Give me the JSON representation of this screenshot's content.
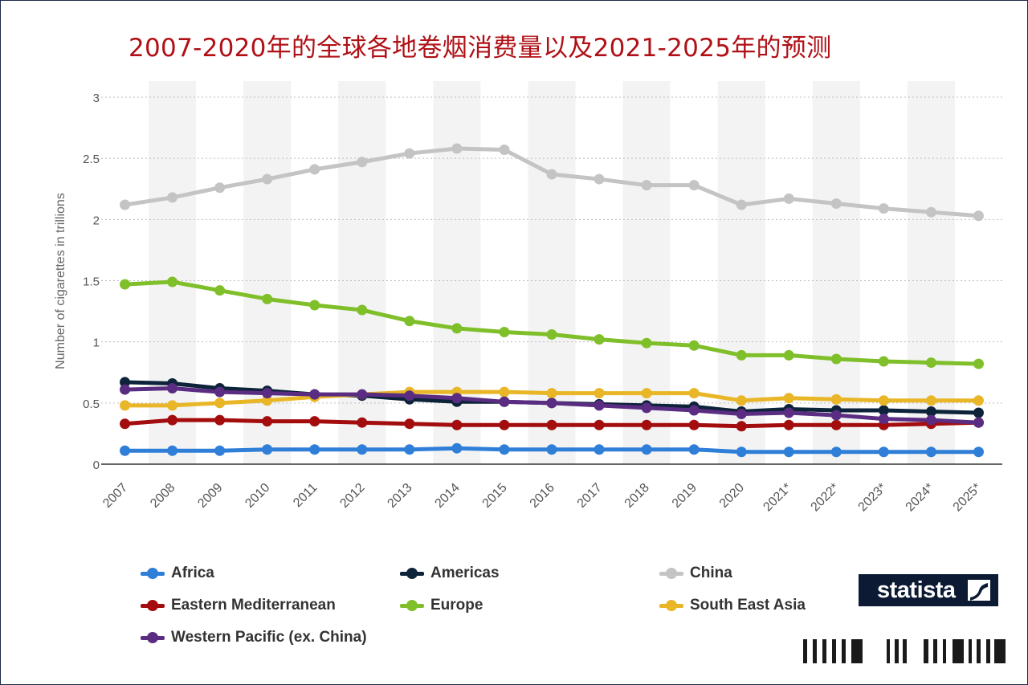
{
  "title": "2007-2020年的全球各地卷烟消费量以及2021-2025年的预测",
  "brand": "statista",
  "chart_data": {
    "type": "line",
    "title": "2007-2020年的全球各地卷烟消费量以及2021-2025年的预测",
    "xlabel": "",
    "ylabel": "Number of cigarettes in trillions",
    "ylim": [
      0,
      3
    ],
    "yticks": [
      "0",
      "0.5",
      "1",
      "1.5",
      "2",
      "2.5",
      "3"
    ],
    "grid": true,
    "legend_position": "bottom",
    "categories": [
      "2007",
      "2008",
      "2009",
      "2010",
      "2011",
      "2012",
      "2013",
      "2014",
      "2015",
      "2016",
      "2017",
      "2018",
      "2019",
      "2020",
      "2021*",
      "2022*",
      "2023*",
      "2024*",
      "2025*"
    ],
    "series": [
      {
        "name": "Africa",
        "color": "#2f7ed8",
        "values": [
          0.11,
          0.11,
          0.11,
          0.12,
          0.12,
          0.12,
          0.12,
          0.13,
          0.12,
          0.12,
          0.12,
          0.12,
          0.12,
          0.1,
          0.1,
          0.1,
          0.1,
          0.1,
          0.1
        ]
      },
      {
        "name": "Americas",
        "color": "#0d233a",
        "values": [
          0.67,
          0.66,
          0.62,
          0.6,
          0.57,
          0.56,
          0.53,
          0.51,
          0.51,
          0.5,
          0.49,
          0.48,
          0.47,
          0.43,
          0.45,
          0.44,
          0.44,
          0.43,
          0.42
        ]
      },
      {
        "name": "China",
        "color": "#c4c4c4",
        "values": [
          2.12,
          2.18,
          2.26,
          2.33,
          2.41,
          2.47,
          2.54,
          2.58,
          2.57,
          2.37,
          2.33,
          2.28,
          2.28,
          2.12,
          2.17,
          2.13,
          2.09,
          2.06,
          2.03
        ]
      },
      {
        "name": "Eastern Mediterranean",
        "color": "#a30d0d",
        "values": [
          0.33,
          0.36,
          0.36,
          0.35,
          0.35,
          0.34,
          0.33,
          0.32,
          0.32,
          0.32,
          0.32,
          0.32,
          0.32,
          0.31,
          0.32,
          0.32,
          0.32,
          0.33,
          0.34
        ]
      },
      {
        "name": "Europe",
        "color": "#7fbf2a",
        "values": [
          1.47,
          1.49,
          1.42,
          1.35,
          1.3,
          1.26,
          1.17,
          1.11,
          1.08,
          1.06,
          1.02,
          0.99,
          0.97,
          0.89,
          0.89,
          0.86,
          0.84,
          0.83,
          0.82
        ]
      },
      {
        "name": "South East Asia",
        "color": "#e8b626",
        "values": [
          0.48,
          0.48,
          0.5,
          0.52,
          0.55,
          0.57,
          0.59,
          0.59,
          0.59,
          0.58,
          0.58,
          0.58,
          0.58,
          0.52,
          0.54,
          0.53,
          0.52,
          0.52,
          0.52
        ]
      },
      {
        "name": "Western Pacific (ex. China)",
        "color": "#5a2d82",
        "values": [
          0.61,
          0.62,
          0.59,
          0.58,
          0.57,
          0.57,
          0.56,
          0.54,
          0.51,
          0.5,
          0.48,
          0.46,
          0.44,
          0.41,
          0.42,
          0.4,
          0.37,
          0.36,
          0.34
        ]
      }
    ]
  }
}
